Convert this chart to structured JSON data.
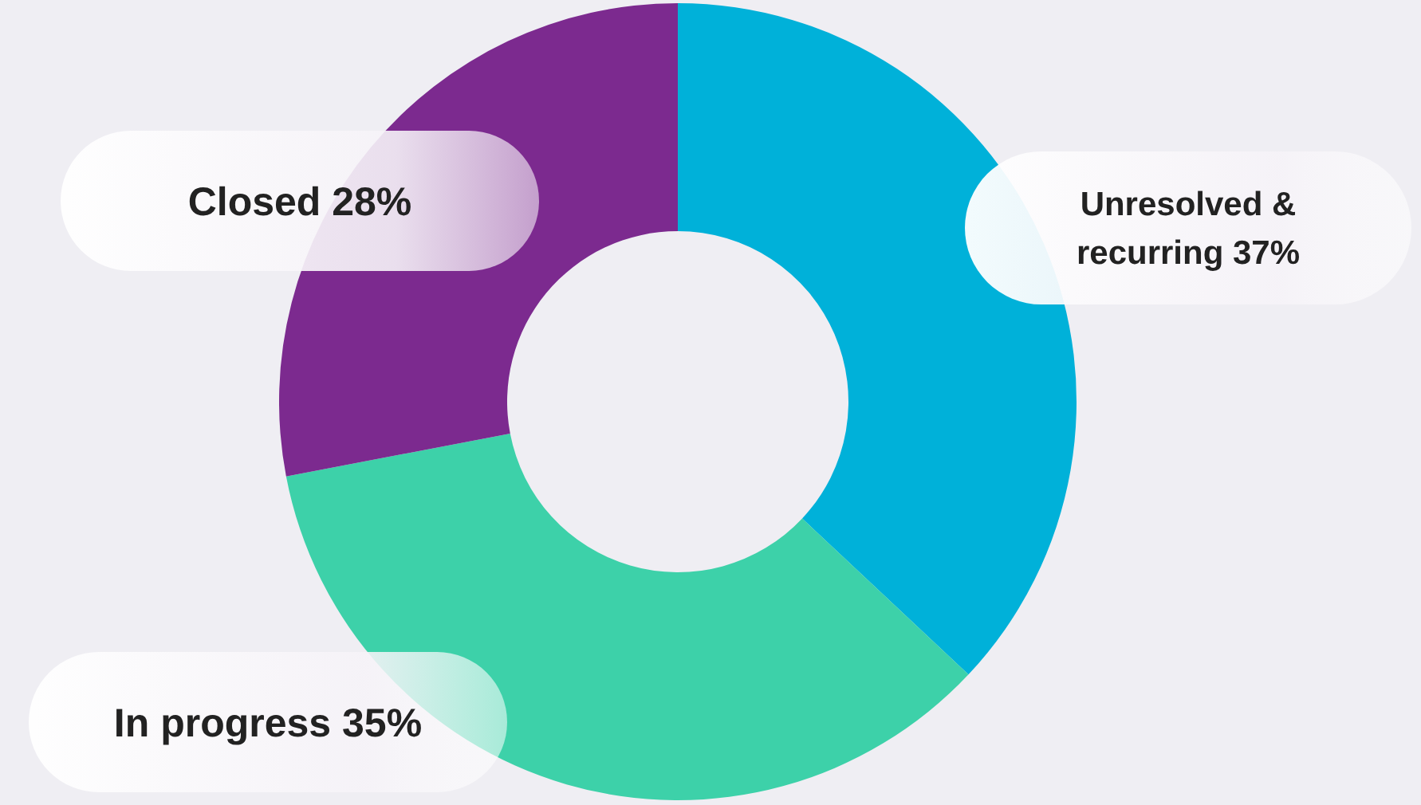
{
  "chart_data": {
    "type": "donut",
    "categories": [
      "Unresolved & recurring",
      "In progress",
      "Closed"
    ],
    "values": [
      37,
      35,
      28
    ],
    "colors": [
      "#00b1d9",
      "#3dd1a9",
      "#7c2a8f"
    ],
    "value_labels": [
      "37%",
      "35%",
      "28%"
    ]
  }
}
